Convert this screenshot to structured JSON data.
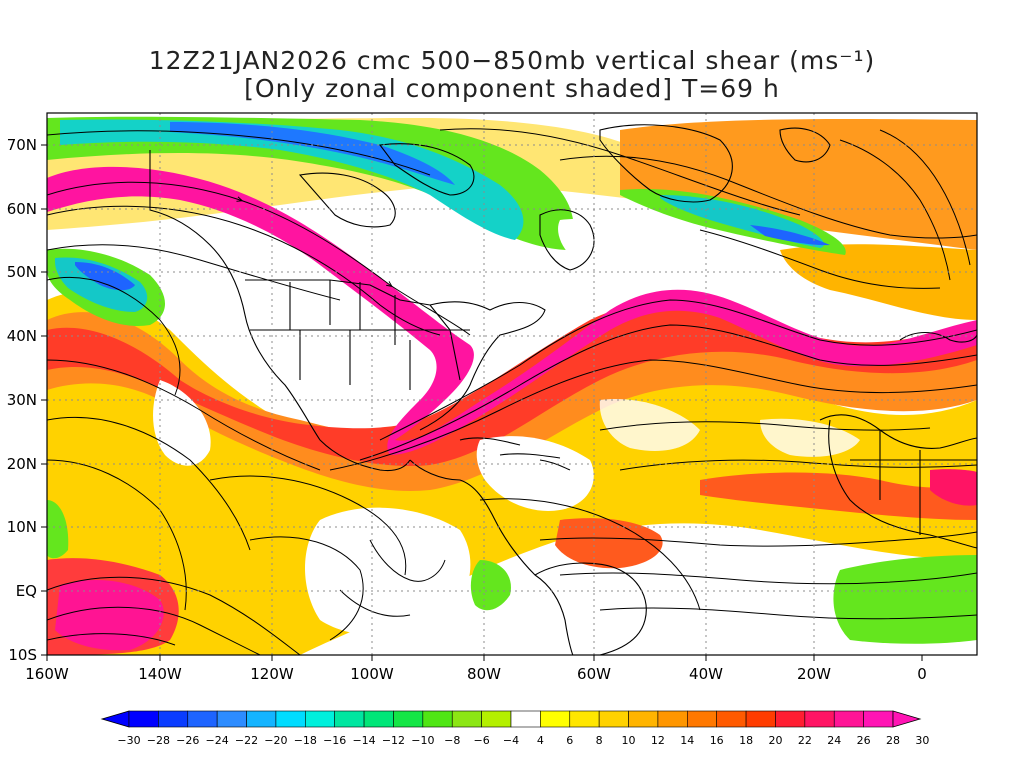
{
  "title": {
    "line1": "12Z21JAN2026 cmc 500−850mb vertical shear (ms⁻¹)",
    "line2": "[Only zonal component shaded] T=69 h"
  },
  "axes": {
    "lat_labels": [
      "70N",
      "60N",
      "50N",
      "40N",
      "30N",
      "20N",
      "10N",
      "EQ",
      "10S"
    ],
    "lon_labels": [
      "160W",
      "140W",
      "120W",
      "100W",
      "80W",
      "60W",
      "40W",
      "20W",
      "0"
    ]
  },
  "colorbar": {
    "tick_labels": [
      "-30",
      "-28",
      "-26",
      "-24",
      "-22",
      "-20",
      "-18",
      "-16",
      "-14",
      "-12",
      "-10",
      "-8",
      "-6",
      "-4",
      "4",
      "6",
      "8",
      "10",
      "12",
      "14",
      "16",
      "18",
      "20",
      "22",
      "24",
      "26",
      "28",
      "30"
    ],
    "colors": [
      "#0000ff",
      "#0a3cff",
      "#1e64ff",
      "#2d8cff",
      "#14b4ff",
      "#00dcff",
      "#00f0dc",
      "#00e6a0",
      "#00e678",
      "#14e646",
      "#50e614",
      "#8ce614",
      "#b4f000",
      "#ffffff",
      "#ffff00",
      "#ffe600",
      "#ffd200",
      "#ffb400",
      "#ff9600",
      "#ff7800",
      "#ff5a00",
      "#ff3c00",
      "#ff1e32",
      "#ff1464",
      "#ff1496",
      "#ff14b4"
    ]
  },
  "colors": {
    "jet_core": "#ff14a0",
    "jet_red": "#ff3c32",
    "jet_orange": "#ff8c1e",
    "jet_yellow": "#ffd200",
    "green": "#64e61e",
    "cyan": "#14d2c8",
    "blue": "#1e64ff",
    "coast": "#000000",
    "grid": "#999999"
  }
}
